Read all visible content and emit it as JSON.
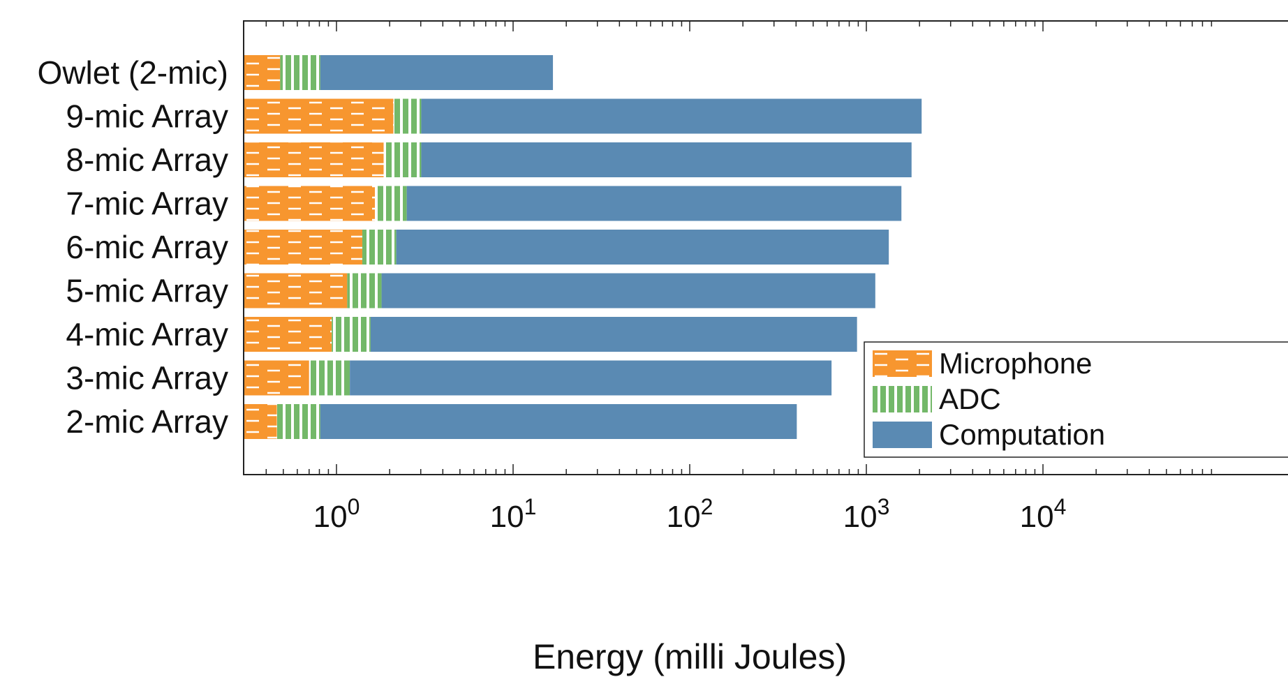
{
  "chart_data": {
    "type": "bar",
    "orientation": "horizontal",
    "stacked": true,
    "x_scale": "log",
    "xlabel": "Energy (milli Joules)",
    "xlim": [
      0.3,
      20000
    ],
    "x_ticks": [
      1,
      10,
      100,
      1000,
      10000
    ],
    "x_tick_labels": [
      {
        "base": "10",
        "exp": "0"
      },
      {
        "base": "10",
        "exp": "1"
      },
      {
        "base": "10",
        "exp": "2"
      },
      {
        "base": "10",
        "exp": "3"
      },
      {
        "base": "10",
        "exp": "4"
      }
    ],
    "categories": [
      "Owlet (2-mic)",
      "9-mic Array",
      "8-mic Array",
      "7-mic Array",
      "6-mic Array",
      "5-mic Array",
      "4-mic Array",
      "3-mic Array",
      "2-mic Array"
    ],
    "series": [
      {
        "name": "Microphone",
        "color": "#f7962f",
        "pattern": "dashed",
        "values": [
          0.48,
          2.1,
          1.85,
          1.65,
          1.4,
          1.15,
          0.94,
          0.7,
          0.46
        ]
      },
      {
        "name": "ADC",
        "color": "#73b869",
        "pattern": "vertical-stripes",
        "values": [
          0.33,
          0.92,
          1.17,
          0.85,
          0.78,
          0.65,
          0.62,
          0.49,
          0.35
        ]
      },
      {
        "name": "Computation",
        "color": "#5a8ab3",
        "pattern": "solid",
        "values": [
          16,
          2053,
          1800,
          1577,
          1338,
          1122,
          884,
          634,
          403
        ]
      }
    ],
    "legend": {
      "position": "lower-right",
      "entries": [
        "Microphone",
        "ADC",
        "Computation"
      ]
    },
    "grid": false
  }
}
